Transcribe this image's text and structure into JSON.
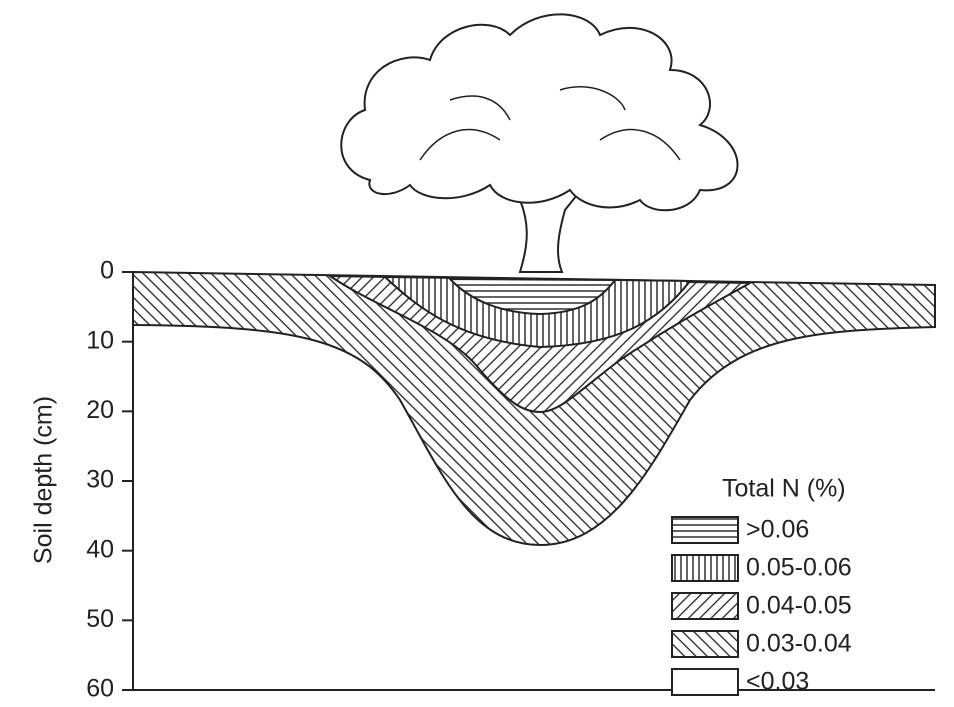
{
  "y_axis": {
    "label": "Soil depth (cm)",
    "ticks": [
      0,
      10,
      20,
      30,
      40,
      50,
      60
    ]
  },
  "legend": {
    "title": "Total N (%)",
    "items": [
      ">0.06",
      "0.05-0.06",
      "0.04-0.05",
      "0.03-0.04",
      "<0.03"
    ]
  }
}
